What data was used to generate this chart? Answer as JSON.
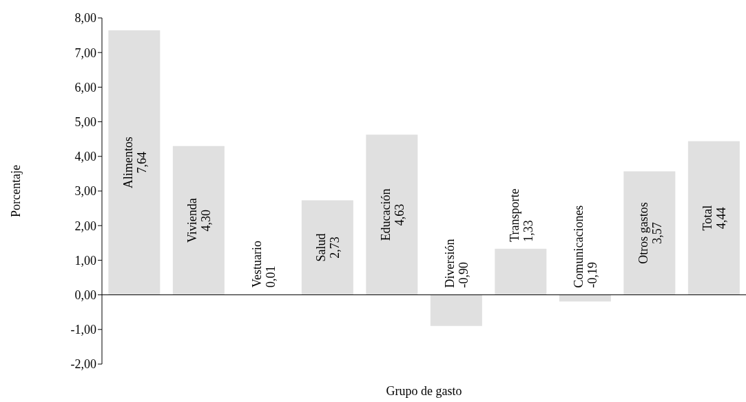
{
  "chart_data": {
    "type": "bar",
    "xlabel": "Grupo de gasto",
    "ylabel": "Porcentaje",
    "categories": [
      "Alimentos",
      "Vivienda",
      "Vestuario",
      "Salud",
      "Educación",
      "Diversión",
      "Transporte",
      "Comunicaciones",
      "Otros gastos",
      "Total"
    ],
    "values": [
      7.64,
      4.3,
      0.01,
      2.73,
      4.63,
      -0.9,
      1.33,
      -0.19,
      3.57,
      4.44
    ],
    "value_labels": [
      "7,64",
      "4,30",
      "0,01",
      "2,73",
      "4,63",
      "-0,90",
      "1,33",
      "-0,19",
      "3,57",
      "4,44"
    ],
    "color": "#e0e0e0",
    "ylim": [
      -2,
      8
    ],
    "yticks": [
      {
        "value": -2,
        "label": "-2,00"
      },
      {
        "value": -1,
        "label": "-1,00"
      },
      {
        "value": 0,
        "label": "0,00"
      },
      {
        "value": 1,
        "label": "1,00"
      },
      {
        "value": 2,
        "label": "2,00"
      },
      {
        "value": 3,
        "label": "3,00"
      },
      {
        "value": 4,
        "label": "4,00"
      },
      {
        "value": 5,
        "label": "5,00"
      },
      {
        "value": 6,
        "label": "6,00"
      },
      {
        "value": 7,
        "label": "7,00"
      },
      {
        "value": 8,
        "label": "8,00"
      }
    ],
    "tick_labels": "y",
    "grid": false,
    "legend": false
  }
}
